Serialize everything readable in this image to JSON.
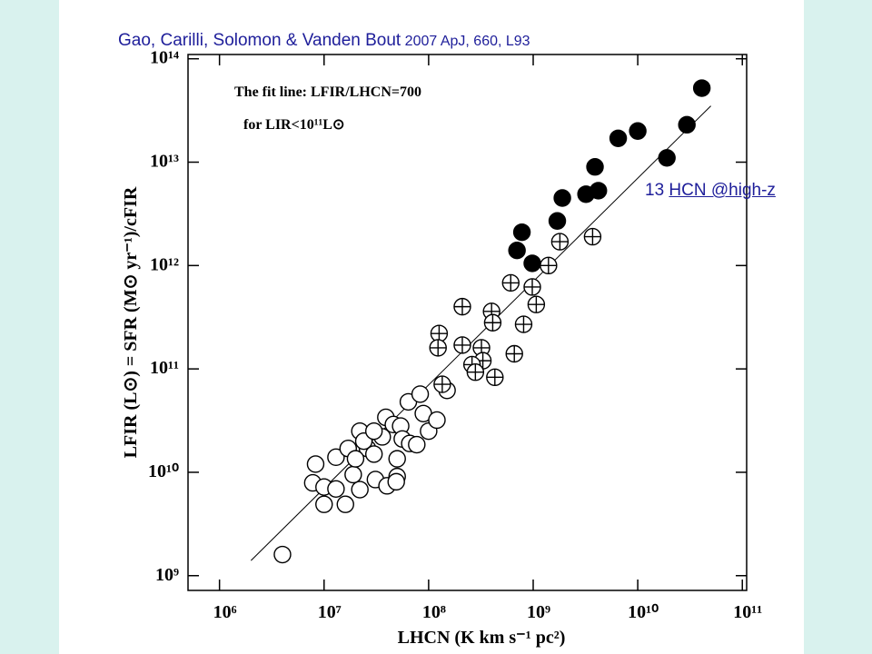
{
  "header": {
    "authors": "Gao, Carilli, Solomon & Vanden Bout",
    "citation": "2007 ApJ, 660, L93"
  },
  "slide_number": "13",
  "link": "HCN @high-z",
  "chart_data": {
    "type": "scatter",
    "x_label": "LHCN (K km s⁻¹ pc²)",
    "y_label": "LFIR (L⊙) = SFR (M⊙ yr⁻¹)/cFIR",
    "annotations": [
      "The fit line: LFIR/LHCN=700",
      "for LIR<10¹¹L⊙"
    ],
    "log_x": true,
    "log_y": true,
    "xlim": [
      500000,
      110000000000
    ],
    "ylim": [
      720000000,
      110000000000000
    ],
    "xticks": [
      {
        "value": 1000000,
        "label": "10⁶"
      },
      {
        "value": 10000000,
        "label": "10⁷"
      },
      {
        "value": 100000000,
        "label": "10⁸"
      },
      {
        "value": 1000000000,
        "label": "10⁹"
      },
      {
        "value": 10000000000,
        "label": "10¹⁰"
      },
      {
        "value": 100000000000,
        "label": "10¹¹"
      }
    ],
    "yticks": [
      {
        "value": 1000000000,
        "label": "10⁹"
      },
      {
        "value": 10000000000,
        "label": "10¹⁰"
      },
      {
        "value": 100000000000,
        "label": "10¹¹"
      },
      {
        "value": 1000000000000,
        "label": "10¹²"
      },
      {
        "value": 10000000000000,
        "label": "10¹³"
      },
      {
        "value": 100000000000000,
        "label": "10¹⁴"
      }
    ],
    "fit": {
      "ratio": 700,
      "x": [
        2000000,
        50000000000
      ],
      "color": "#000000"
    },
    "series": [
      {
        "marker": "open",
        "color": "#000000",
        "x": [
          4000000,
          8300000,
          7800000,
          10000000,
          10000000,
          16000000,
          13000000,
          17000000,
          22000000,
          26000000,
          19000000,
          24000000,
          30000000,
          31000000,
          36000000,
          39000000,
          46000000,
          50000000,
          50000000,
          54000000,
          56000000,
          64000000,
          66000000,
          77000000,
          83000000,
          89000000,
          100000000,
          120000000,
          150000000,
          22000000,
          20000000,
          13000000,
          40000000,
          49000000,
          30000000
        ],
        "values": [
          1600000000,
          12000000000,
          7900000000,
          7200000000,
          4900000000,
          4900000000,
          14000000000,
          17000000000,
          25000000000,
          17000000000,
          9500000000,
          20000000000,
          15000000000,
          8500000000,
          22000000000,
          34000000000,
          29000000000,
          13500000000,
          9100000000,
          28000000000,
          21000000000,
          48000000000,
          19000000000,
          18500000000,
          57000000000,
          37000000000,
          25000000000,
          32000000000,
          62000000000,
          6800000000,
          13500000000,
          6900000000,
          7400000000,
          8100000000,
          25000000000
        ]
      },
      {
        "marker": "plus",
        "color": "#000000",
        "x": [
          3700000000,
          1800000000,
          1400000000,
          980000000,
          1070000000,
          610000000,
          210000000,
          400000000,
          410000000,
          810000000,
          126000000,
          123000000,
          210000000,
          320000000,
          330000000,
          660000000,
          260000000,
          280000000,
          430000000,
          135000000
        ],
        "values": [
          1900000000000,
          1700000000000,
          1000000000000,
          620000000000,
          420000000000,
          680000000000,
          400000000000,
          360000000000,
          280000000000,
          270000000000,
          220000000000,
          160000000000,
          170000000000,
          160000000000,
          120000000000,
          140000000000,
          110000000000,
          93000000000,
          83000000000,
          71000000000
        ]
      },
      {
        "marker": "filled",
        "color": "#000000",
        "x": [
          41000000000,
          29500000000,
          10000000000,
          6500000000,
          19000000000,
          3900000000,
          4200000000,
          3200000000,
          1900000000,
          1700000000,
          780000000,
          700000000,
          980000000
        ],
        "values": [
          52000000000000,
          23000000000000,
          20000000000000,
          17000000000000,
          11000000000000,
          9000000000000,
          5300000000000,
          4900000000000,
          4500000000000,
          2700000000000,
          2100000000000,
          1400000000000,
          1050000000000
        ]
      }
    ]
  }
}
